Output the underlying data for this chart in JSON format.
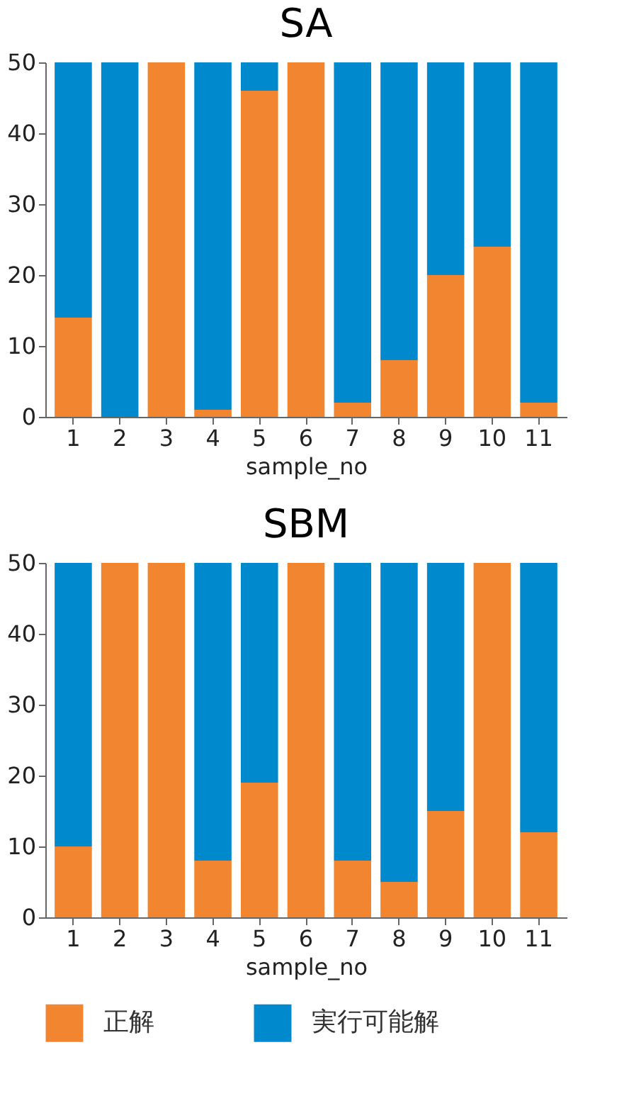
{
  "chart_data": [
    {
      "type": "bar",
      "title": "SA",
      "xlabel": "sample_no",
      "categories": [
        "1",
        "2",
        "3",
        "4",
        "5",
        "6",
        "7",
        "8",
        "9",
        "10",
        "11"
      ],
      "stacked": true,
      "ylim": [
        0,
        50
      ],
      "yticks": [
        0,
        10,
        20,
        30,
        40,
        50
      ],
      "grid": false,
      "legend": "bottom",
      "series": [
        {
          "name": "正解",
          "color": "#f28530",
          "values": [
            14,
            0,
            50,
            1,
            46,
            50,
            2,
            8,
            20,
            24,
            2
          ]
        },
        {
          "name": "実行可能解",
          "color": "#0089cc",
          "values": [
            36,
            50,
            0,
            49,
            4,
            0,
            48,
            42,
            30,
            26,
            48
          ]
        }
      ]
    },
    {
      "type": "bar",
      "title": "SBM",
      "xlabel": "sample_no",
      "categories": [
        "1",
        "2",
        "3",
        "4",
        "5",
        "6",
        "7",
        "8",
        "9",
        "10",
        "11"
      ],
      "stacked": true,
      "ylim": [
        0,
        50
      ],
      "yticks": [
        0,
        10,
        20,
        30,
        40,
        50
      ],
      "grid": false,
      "legend": "bottom",
      "series": [
        {
          "name": "正解",
          "color": "#f28530",
          "values": [
            10,
            50,
            50,
            8,
            19,
            50,
            8,
            5,
            15,
            50,
            12
          ]
        },
        {
          "name": "実行可能解",
          "color": "#0089cc",
          "values": [
            40,
            0,
            0,
            42,
            31,
            0,
            42,
            45,
            35,
            0,
            38
          ]
        }
      ]
    }
  ]
}
